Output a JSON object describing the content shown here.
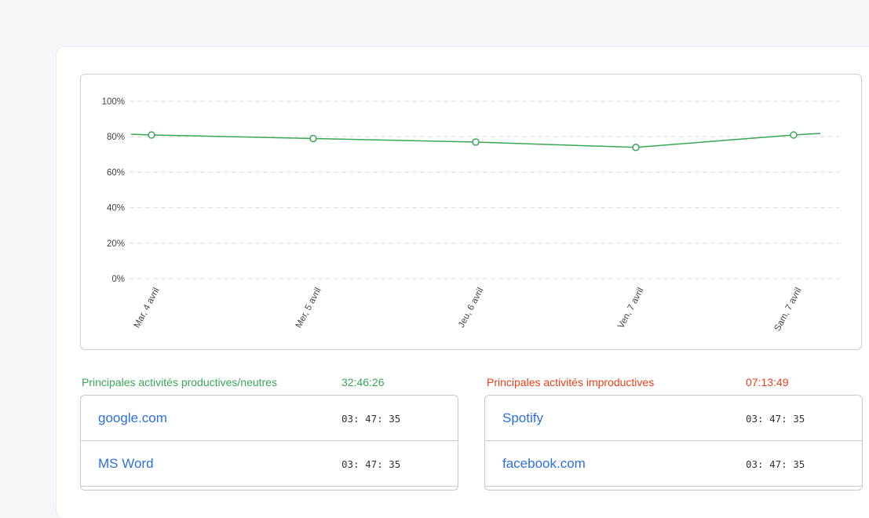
{
  "chart_data": {
    "type": "line",
    "categories": [
      "Mar, 4 avril",
      "Mer, 5 avril",
      "Jeu, 6 avril",
      "Ven, 7 avril",
      "Sam, 7 avril"
    ],
    "values": [
      81,
      79,
      77,
      74,
      81
    ],
    "y_ticks": [
      "100%",
      "80%",
      "60%",
      "40%",
      "20%",
      "0%"
    ],
    "ylim": [
      0,
      100
    ],
    "grid": true,
    "line_color": "#3aa757"
  },
  "productive": {
    "title": "Principales activités productives/neutres",
    "total": "32:46:26",
    "color": "#3aa757",
    "rows": [
      {
        "name": "google.com",
        "time": "03: 47: 35"
      },
      {
        "name": "MS Word",
        "time": "03: 47: 35"
      }
    ]
  },
  "unproductive": {
    "title": "Principales activités improductives",
    "total": "07:13:49",
    "color": "#e8401c",
    "rows": [
      {
        "name": "Spotify",
        "time": "03: 47: 35"
      },
      {
        "name": "facebook.com",
        "time": "03: 47: 35"
      }
    ]
  }
}
